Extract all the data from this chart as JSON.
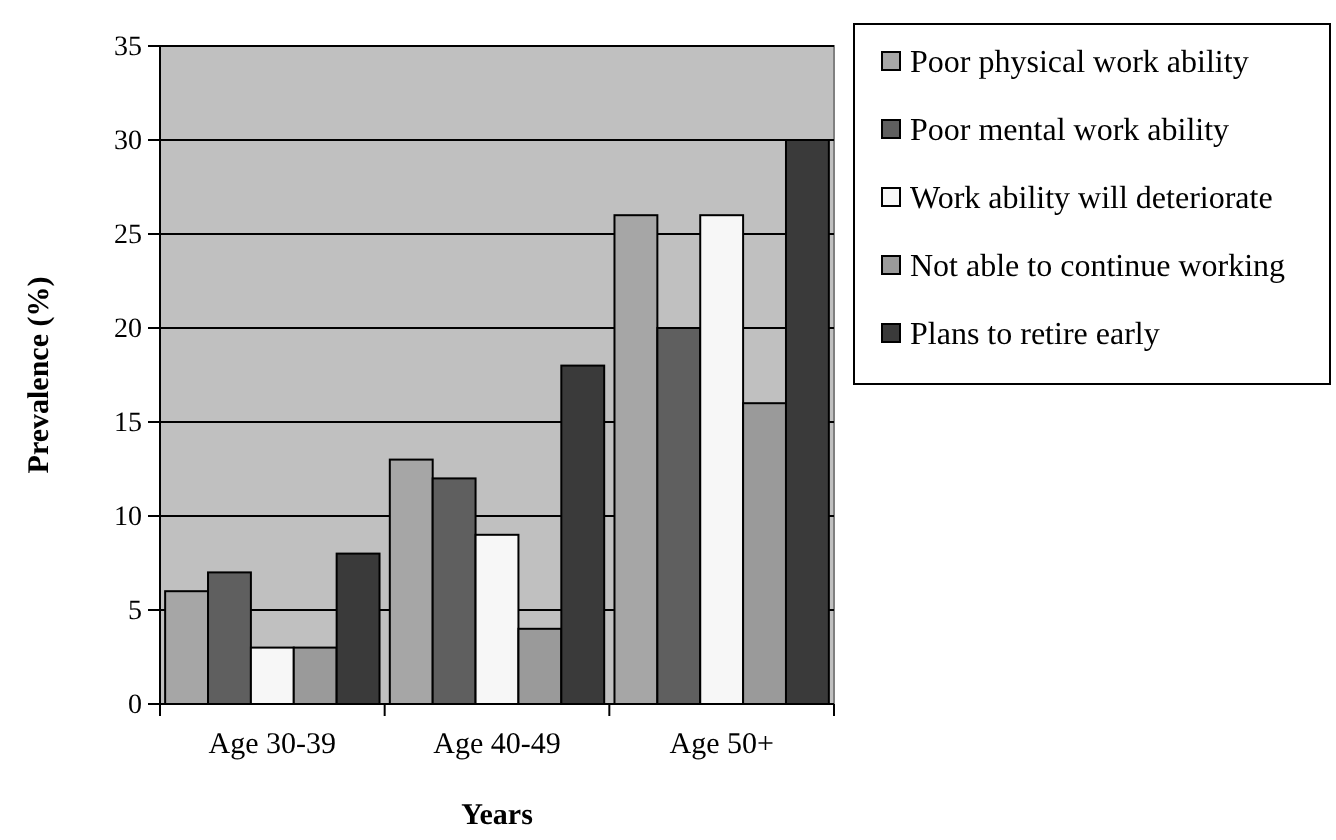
{
  "chart_data": {
    "type": "bar",
    "xlabel": "Years",
    "ylabel": "Prevalence (%)",
    "categories": [
      "Age 30-39",
      "Age 40-49",
      "Age 50+"
    ],
    "series": [
      {
        "name": "Poor physical work ability",
        "color": "#a6a6a6",
        "values": [
          6,
          13,
          26
        ]
      },
      {
        "name": "Poor mental work ability",
        "color": "#5f5f5f",
        "values": [
          7,
          12,
          20
        ]
      },
      {
        "name": "Work ability will deteriorate",
        "color": "#f7f7f7",
        "values": [
          3,
          9,
          26
        ]
      },
      {
        "name": "Not able to continue working",
        "color": "#9a9a9a",
        "values": [
          3,
          4,
          16
        ]
      },
      {
        "name": "Plans to retire early",
        "color": "#3a3a3a",
        "values": [
          8,
          18,
          30
        ]
      }
    ],
    "ylim": [
      0,
      35
    ],
    "yticks": [
      0,
      5,
      10,
      15,
      20,
      25,
      30,
      35
    ],
    "grid": "y",
    "legend": "right"
  }
}
